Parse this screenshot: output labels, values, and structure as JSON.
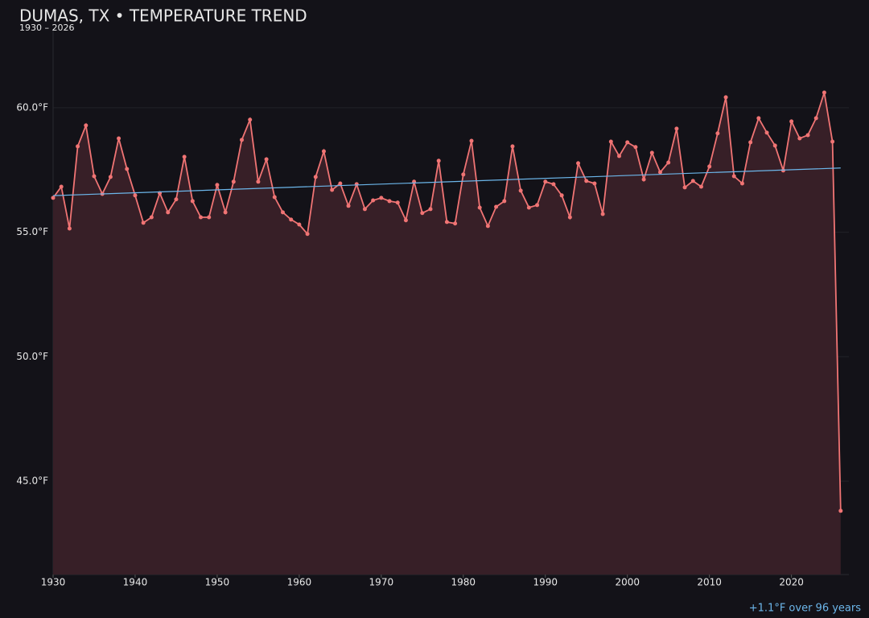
{
  "chart_data": {
    "type": "line",
    "title": "DUMAS, TX • TEMPERATURE TREND",
    "subtitle": "1930 – 2026",
    "annotation": "+1.1°F over 96 years",
    "x": [
      1930,
      1931,
      1932,
      1933,
      1934,
      1935,
      1936,
      1937,
      1938,
      1939,
      1940,
      1941,
      1942,
      1943,
      1944,
      1945,
      1946,
      1947,
      1948,
      1949,
      1950,
      1951,
      1952,
      1953,
      1954,
      1955,
      1956,
      1957,
      1958,
      1959,
      1960,
      1961,
      1962,
      1963,
      1964,
      1965,
      1966,
      1967,
      1968,
      1969,
      1970,
      1971,
      1972,
      1973,
      1974,
      1975,
      1976,
      1977,
      1978,
      1979,
      1980,
      1981,
      1982,
      1983,
      1984,
      1985,
      1986,
      1987,
      1988,
      1989,
      1990,
      1991,
      1992,
      1993,
      1994,
      1995,
      1996,
      1997,
      1998,
      1999,
      2000,
      2001,
      2002,
      2003,
      2004,
      2005,
      2006,
      2007,
      2008,
      2009,
      2010,
      2011,
      2012,
      2013,
      2014,
      2015,
      2016,
      2017,
      2018,
      2019,
      2020,
      2021,
      2022,
      2023,
      2024,
      2025,
      2026
    ],
    "series": [
      {
        "color": "#f07474",
        "values": [
          56.38,
          56.83,
          55.15,
          58.45,
          59.29,
          57.25,
          56.54,
          57.22,
          58.77,
          57.54,
          56.48,
          55.38,
          55.6,
          56.57,
          55.8,
          56.32,
          58.03,
          56.25,
          55.6,
          55.6,
          56.9,
          55.8,
          57.03,
          58.71,
          59.52,
          57.03,
          57.93,
          56.41,
          55.8,
          55.51,
          55.31,
          54.93,
          57.22,
          58.25,
          56.7,
          56.96,
          56.06,
          56.93,
          55.93,
          56.28,
          56.38,
          56.25,
          56.19,
          55.48,
          57.03,
          55.77,
          55.93,
          57.87,
          55.41,
          55.35,
          57.32,
          58.67,
          55.99,
          55.25,
          56.02,
          56.25,
          58.45,
          56.67,
          55.99,
          56.09,
          57.03,
          56.93,
          56.48,
          55.6,
          57.77,
          57.06,
          56.96,
          55.73,
          58.64,
          58.06,
          58.61,
          58.42,
          57.12,
          58.19,
          57.41,
          57.8,
          59.16,
          56.8,
          57.06,
          56.83,
          57.64,
          58.97,
          60.42,
          57.25,
          56.96,
          58.61,
          59.58,
          59.0,
          58.48,
          57.48,
          59.45,
          58.77,
          58.9,
          59.58,
          60.61,
          58.64,
          43.81
        ]
      }
    ],
    "trend": {
      "color": "#6cb6ea",
      "x": [
        1930,
        2026
      ],
      "values": [
        56.47,
        57.58
      ]
    },
    "area_color": "#371f27",
    "xlim": [
      1930,
      2027
    ],
    "ylim": [
      41.25,
      63.1
    ],
    "xticks": [
      1930,
      1940,
      1950,
      1960,
      1970,
      1980,
      1990,
      2000,
      2010,
      2020
    ],
    "yticks": [
      {
        "value": 45,
        "label": "45.0°F"
      },
      {
        "value": 50,
        "label": "50.0°F"
      },
      {
        "value": 55,
        "label": "55.0°F"
      },
      {
        "value": 60,
        "label": "60.0°F"
      }
    ],
    "grid": true
  }
}
